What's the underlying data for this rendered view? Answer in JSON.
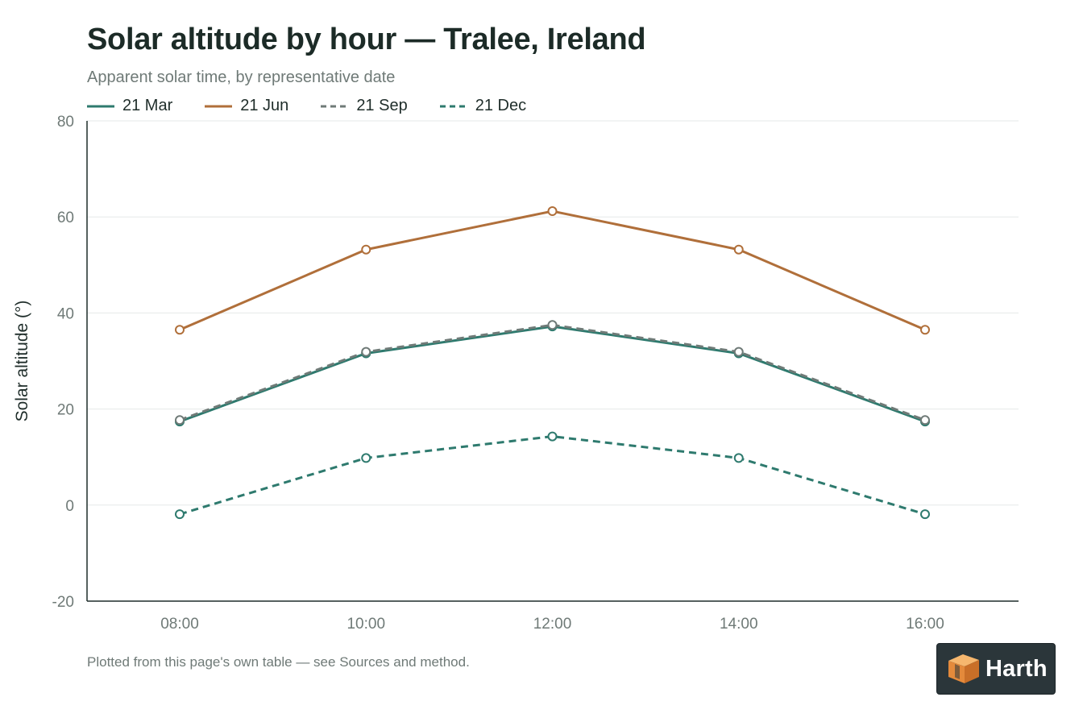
{
  "page": {
    "title": "Solar altitude by hour — Tralee, Ireland",
    "subtitle": "Apparent solar time, by representative date",
    "footnote": "Plotted from this page's own table — see Sources and method.",
    "brand": "Harth"
  },
  "chart_data": {
    "type": "line",
    "title": "Solar altitude by hour — Tralee, Ireland",
    "subtitle": "Apparent solar time, by representative date",
    "xlabel": "",
    "ylabel": "Solar altitude (°)",
    "categories": [
      "08:00",
      "10:00",
      "12:00",
      "14:00",
      "16:00"
    ],
    "ylim": [
      -20,
      80
    ],
    "yticks": [
      -20,
      0,
      20,
      40,
      60,
      80
    ],
    "grid": true,
    "legend": "top-left",
    "series": [
      {
        "name": "21 Mar",
        "values": [
          17.4,
          31.6,
          37.2,
          31.6,
          17.4
        ],
        "color": "#2e7a6e",
        "dash": "solid"
      },
      {
        "name": "21 Jun",
        "values": [
          36.5,
          53.2,
          61.2,
          53.2,
          36.5
        ],
        "color": "#b06f3a",
        "dash": "solid"
      },
      {
        "name": "21 Sep",
        "values": [
          17.7,
          31.9,
          37.5,
          31.9,
          17.7
        ],
        "color": "#6f7a77",
        "dash": "dashed"
      },
      {
        "name": "21 Dec",
        "values": [
          -1.9,
          9.8,
          14.3,
          9.8,
          -1.9
        ],
        "color": "#2e7a6e",
        "dash": "dashed"
      }
    ]
  }
}
